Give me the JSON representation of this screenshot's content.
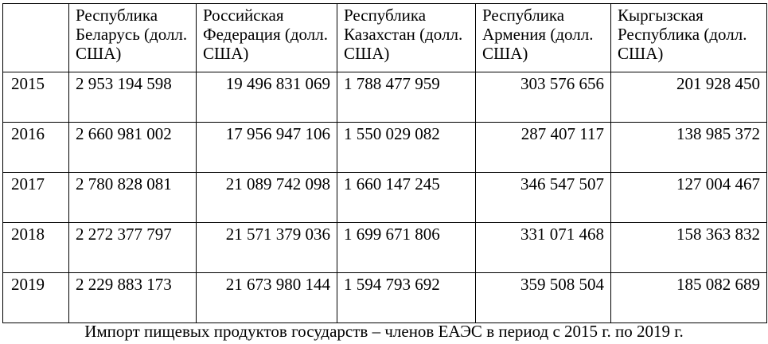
{
  "table": {
    "headers": [
      "",
      "Республика Беларусь (долл. США)",
      "Российская Федерация (долл. США)",
      "Республика Казахстан (долл. США)",
      "Республика Армения (долл. США)",
      "Кыргызская Республика (долл. США)"
    ],
    "rows": [
      {
        "year": "2015",
        "values": [
          "2 953 194 598",
          "19 496 831 069",
          "1 788 477 959",
          "303 576 656",
          "201 928 450"
        ]
      },
      {
        "year": "2016",
        "values": [
          "2 660 981 002",
          "17 956 947 106",
          "1 550 029 082",
          "287 407 117",
          "138 985 372"
        ]
      },
      {
        "year": "2017",
        "values": [
          "2 780 828 081",
          "21 089 742 098",
          "1 660 147 245",
          "346 547 507",
          "127 004 467"
        ]
      },
      {
        "year": "2018",
        "values": [
          "2 272 377 797",
          "21 571 379 036",
          "1 699 671 806",
          "331 071 468",
          "158 363 832"
        ]
      },
      {
        "year": "2019",
        "values": [
          "2 229 883 173",
          "21 673 980 144",
          "1 594 793 692",
          "359 508 504",
          "185 082 689"
        ]
      }
    ]
  },
  "caption": "Импорт пищевых продуктов государств – членов ЕАЭС в период с 2015 г. по 2019 г."
}
